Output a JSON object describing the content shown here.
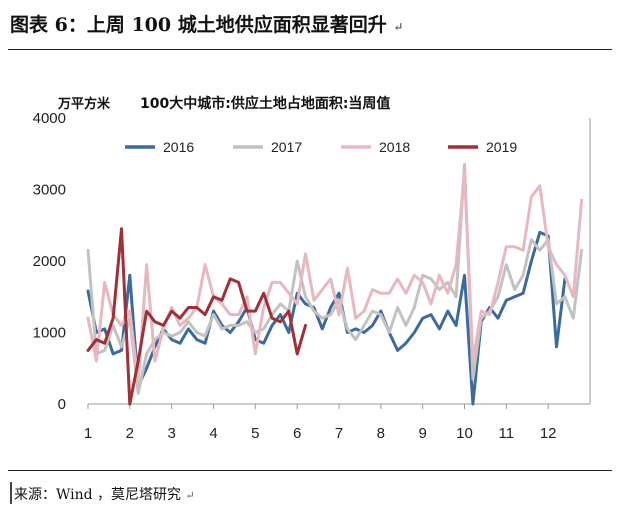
{
  "figure_title": "图表 6：上周 100 城土地供应面积显著回升",
  "figure_title_mark": "↵",
  "source_text": "来源：Wind ，莫尼塔研究",
  "source_mark": "↵",
  "chart_data": {
    "type": "line",
    "title": "100大中城市:供应土地占地面积:当周值",
    "ylabel": "万平方米",
    "ylim": [
      0,
      4000
    ],
    "yticks": [
      0,
      1000,
      2000,
      3000,
      4000
    ],
    "xlim": [
      1,
      13
    ],
    "xticks": [
      1,
      2,
      3,
      4,
      5,
      6,
      7,
      8,
      9,
      10,
      11,
      12
    ],
    "legend_position": "top",
    "series": [
      {
        "name": "2016",
        "color": "#3d6a9c",
        "points": [
          [
            1.0,
            1580
          ],
          [
            1.2,
            1000
          ],
          [
            1.4,
            1050
          ],
          [
            1.6,
            700
          ],
          [
            1.8,
            750
          ],
          [
            2.0,
            1800
          ],
          [
            2.2,
            250
          ],
          [
            2.4,
            500
          ],
          [
            2.6,
            800
          ],
          [
            2.8,
            1050
          ],
          [
            3.0,
            900
          ],
          [
            3.2,
            850
          ],
          [
            3.4,
            1050
          ],
          [
            3.6,
            900
          ],
          [
            3.8,
            850
          ],
          [
            4.0,
            1300
          ],
          [
            4.2,
            1100
          ],
          [
            4.4,
            1000
          ],
          [
            4.6,
            1150
          ],
          [
            4.8,
            1350
          ],
          [
            5.0,
            900
          ],
          [
            5.2,
            850
          ],
          [
            5.4,
            1100
          ],
          [
            5.6,
            1250
          ],
          [
            5.8,
            1000
          ],
          [
            6.0,
            1550
          ],
          [
            6.2,
            1400
          ],
          [
            6.4,
            1350
          ],
          [
            6.6,
            1050
          ],
          [
            6.8,
            1350
          ],
          [
            7.0,
            1550
          ],
          [
            7.2,
            1000
          ],
          [
            7.4,
            1050
          ],
          [
            7.6,
            1000
          ],
          [
            7.8,
            1100
          ],
          [
            8.0,
            1300
          ],
          [
            8.2,
            1000
          ],
          [
            8.4,
            750
          ],
          [
            8.6,
            850
          ],
          [
            8.8,
            1000
          ],
          [
            9.0,
            1200
          ],
          [
            9.2,
            1250
          ],
          [
            9.4,
            1050
          ],
          [
            9.6,
            1300
          ],
          [
            9.8,
            1100
          ],
          [
            10.0,
            1800
          ],
          [
            10.2,
            0
          ],
          [
            10.4,
            1150
          ],
          [
            10.6,
            1350
          ],
          [
            10.8,
            1200
          ],
          [
            11.0,
            1450
          ],
          [
            11.2,
            1500
          ],
          [
            11.4,
            1550
          ],
          [
            11.6,
            2000
          ],
          [
            11.8,
            2400
          ],
          [
            12.0,
            2350
          ],
          [
            12.2,
            800
          ],
          [
            12.4,
            1750
          ]
        ]
      },
      {
        "name": "2017",
        "color": "#c2c2c2",
        "points": [
          [
            1.0,
            2150
          ],
          [
            1.2,
            700
          ],
          [
            1.4,
            750
          ],
          [
            1.6,
            1100
          ],
          [
            1.8,
            800
          ],
          [
            2.0,
            1200
          ],
          [
            2.2,
            150
          ],
          [
            2.4,
            700
          ],
          [
            2.6,
            900
          ],
          [
            2.8,
            1000
          ],
          [
            3.0,
            950
          ],
          [
            3.2,
            1000
          ],
          [
            3.4,
            1150
          ],
          [
            3.6,
            1000
          ],
          [
            3.8,
            950
          ],
          [
            4.0,
            1250
          ],
          [
            4.2,
            1050
          ],
          [
            4.4,
            1100
          ],
          [
            4.6,
            1100
          ],
          [
            4.8,
            1150
          ],
          [
            5.0,
            1000
          ],
          [
            5.2,
            1050
          ],
          [
            5.4,
            1250
          ],
          [
            5.6,
            1400
          ],
          [
            5.8,
            1300
          ],
          [
            6.0,
            2000
          ],
          [
            6.2,
            1500
          ],
          [
            6.4,
            1300
          ],
          [
            6.6,
            1200
          ],
          [
            6.8,
            1250
          ],
          [
            7.0,
            1450
          ],
          [
            7.2,
            1050
          ],
          [
            7.4,
            900
          ],
          [
            7.6,
            1100
          ],
          [
            7.8,
            1300
          ],
          [
            8.0,
            1250
          ],
          [
            8.2,
            1000
          ],
          [
            8.4,
            1350
          ],
          [
            8.6,
            1100
          ],
          [
            8.8,
            1350
          ],
          [
            9.0,
            1800
          ],
          [
            9.2,
            1750
          ],
          [
            9.4,
            1600
          ],
          [
            9.6,
            1700
          ],
          [
            9.8,
            1500
          ],
          [
            10.0,
            3350
          ],
          [
            10.2,
            350
          ],
          [
            10.4,
            1200
          ],
          [
            10.6,
            1300
          ],
          [
            10.8,
            1500
          ],
          [
            11.0,
            1950
          ],
          [
            11.2,
            1600
          ],
          [
            11.4,
            1800
          ],
          [
            11.6,
            2300
          ],
          [
            11.8,
            2150
          ],
          [
            12.0,
            2300
          ],
          [
            12.2,
            1400
          ],
          [
            12.4,
            1500
          ],
          [
            12.6,
            1200
          ],
          [
            12.8,
            2150
          ]
        ]
      },
      {
        "name": "2018",
        "color": "#e7b8c0",
        "points": [
          [
            1.0,
            1200
          ],
          [
            1.2,
            600
          ],
          [
            1.4,
            1700
          ],
          [
            1.6,
            1250
          ],
          [
            1.8,
            1100
          ],
          [
            2.0,
            1300
          ],
          [
            2.2,
            300
          ],
          [
            2.4,
            1950
          ],
          [
            2.6,
            600
          ],
          [
            2.8,
            1050
          ],
          [
            3.0,
            1350
          ],
          [
            3.2,
            1100
          ],
          [
            3.4,
            1200
          ],
          [
            3.6,
            1350
          ],
          [
            3.8,
            1950
          ],
          [
            4.0,
            1500
          ],
          [
            4.2,
            1400
          ],
          [
            4.4,
            1250
          ],
          [
            4.6,
            1250
          ],
          [
            4.8,
            1500
          ],
          [
            5.0,
            700
          ],
          [
            5.2,
            1350
          ],
          [
            5.4,
            1700
          ],
          [
            5.6,
            1700
          ],
          [
            5.8,
            1550
          ],
          [
            6.0,
            1400
          ],
          [
            6.2,
            2100
          ],
          [
            6.4,
            1450
          ],
          [
            6.6,
            1600
          ],
          [
            6.8,
            1750
          ],
          [
            7.0,
            1250
          ],
          [
            7.2,
            1900
          ],
          [
            7.4,
            1200
          ],
          [
            7.6,
            1300
          ],
          [
            7.8,
            1600
          ],
          [
            8.0,
            1550
          ],
          [
            8.2,
            1550
          ],
          [
            8.4,
            1750
          ],
          [
            8.6,
            1550
          ],
          [
            8.8,
            1800
          ],
          [
            9.0,
            1700
          ],
          [
            9.2,
            1400
          ],
          [
            9.4,
            1800
          ],
          [
            9.6,
            1550
          ],
          [
            9.8,
            1950
          ],
          [
            10.0,
            3250
          ],
          [
            10.2,
            600
          ],
          [
            10.4,
            1300
          ],
          [
            10.6,
            1250
          ],
          [
            10.8,
            1700
          ],
          [
            11.0,
            2200
          ],
          [
            11.2,
            2200
          ],
          [
            11.4,
            2150
          ],
          [
            11.6,
            2900
          ],
          [
            11.8,
            3050
          ],
          [
            12.0,
            2200
          ],
          [
            12.2,
            1950
          ],
          [
            12.4,
            1800
          ],
          [
            12.6,
            1500
          ],
          [
            12.8,
            2850
          ]
        ]
      },
      {
        "name": "2019",
        "color": "#a03038",
        "points": [
          [
            1.0,
            750
          ],
          [
            1.2,
            900
          ],
          [
            1.4,
            850
          ],
          [
            1.6,
            1200
          ],
          [
            1.8,
            2450
          ],
          [
            2.0,
            0
          ],
          [
            2.2,
            600
          ],
          [
            2.4,
            1300
          ],
          [
            2.6,
            1150
          ],
          [
            2.8,
            1100
          ],
          [
            3.0,
            1300
          ],
          [
            3.2,
            1200
          ],
          [
            3.4,
            1350
          ],
          [
            3.6,
            1350
          ],
          [
            3.8,
            1250
          ],
          [
            4.0,
            1500
          ],
          [
            4.2,
            1450
          ],
          [
            4.4,
            1750
          ],
          [
            4.6,
            1700
          ],
          [
            4.8,
            1300
          ],
          [
            5.0,
            1300
          ],
          [
            5.2,
            1550
          ],
          [
            5.4,
            1200
          ],
          [
            5.6,
            1150
          ],
          [
            5.8,
            1300
          ],
          [
            6.0,
            700
          ],
          [
            6.2,
            1100
          ]
        ]
      }
    ]
  }
}
